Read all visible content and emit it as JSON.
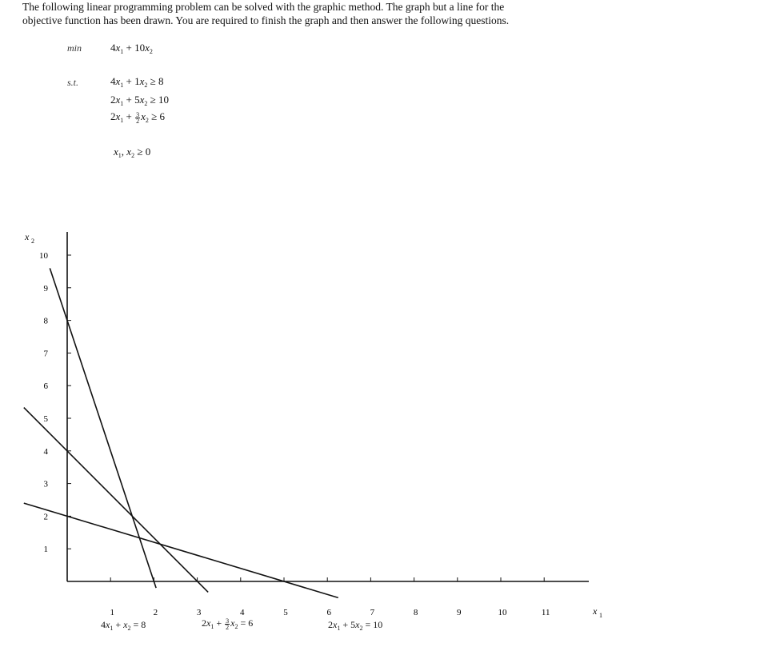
{
  "intro": {
    "line1": "The following linear programming problem can be solved with the graphic method. The graph but a line for the",
    "line2": "objective function has been drawn. You are required to finish the graph and then answer the following questions."
  },
  "lp": {
    "min_label": "min",
    "st_label": "s.t.",
    "objective": {
      "c1": "4",
      "c2": "10"
    },
    "constraints": [
      {
        "a": "4",
        "b": "1",
        "rel": "≥",
        "rhs": "8"
      },
      {
        "a": "2",
        "b": "5",
        "rel": "≥",
        "rhs": "10"
      },
      {
        "a": "2",
        "b_num": "3",
        "b_den": "2",
        "rel": "≥",
        "rhs": "6"
      }
    ],
    "nonneg": {
      "rel": "≥",
      "rhs": "0"
    }
  },
  "chart_data": {
    "type": "line",
    "xlabel": "x1",
    "ylabel": "x2",
    "xticks": [
      1,
      2,
      3,
      4,
      5,
      6,
      7,
      8,
      9,
      10,
      11
    ],
    "yticks": [
      1,
      2,
      3,
      4,
      5,
      6,
      7,
      8,
      9,
      10
    ],
    "xlim": [
      0,
      11.5
    ],
    "ylim": [
      0,
      10.5
    ],
    "grid": false,
    "series": [
      {
        "name": "4x1 + x2 = 8",
        "x": [
          -0.4,
          2.05
        ],
        "y": [
          9.6,
          -0.2
        ]
      },
      {
        "name": "2x1 + 3/2 x2 = 6",
        "x": [
          -1.0,
          3.25
        ],
        "y": [
          5.33,
          -0.33
        ]
      },
      {
        "name": "2x1 + 5x2 = 10",
        "x": [
          -1.0,
          6.25
        ],
        "y": [
          2.4,
          -0.5
        ]
      }
    ],
    "line_labels": {
      "l1": {
        "a": "4",
        "b": "",
        "rhs": "8"
      },
      "l2": {
        "a": "2",
        "b_num": "3",
        "b_den": "2",
        "rhs": "6"
      },
      "l3": {
        "a": "2",
        "b": "5",
        "rhs": "10"
      }
    }
  }
}
